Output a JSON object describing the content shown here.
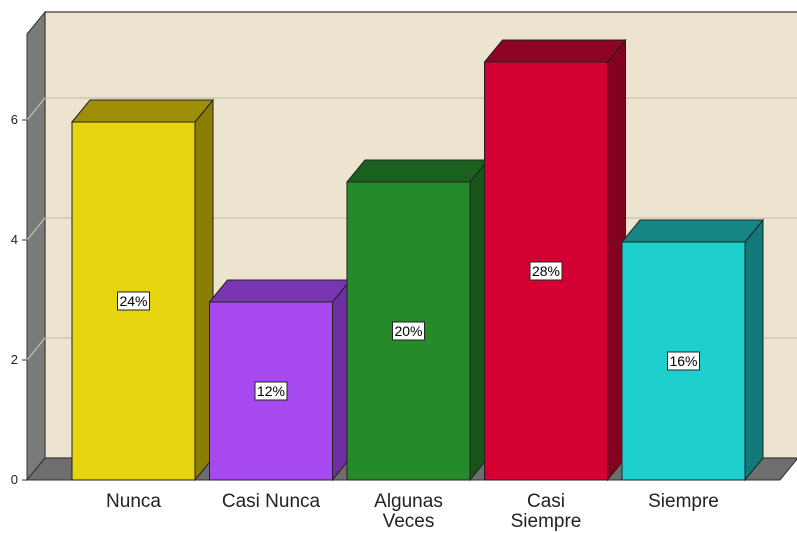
{
  "chart_data": {
    "type": "bar",
    "style": "3d",
    "categories": [
      {
        "lines": [
          "Nunca"
        ]
      },
      {
        "lines": [
          "Casi Nunca"
        ]
      },
      {
        "lines": [
          "Algunas",
          "Veces"
        ]
      },
      {
        "lines": [
          "Casi",
          "Siempre"
        ]
      },
      {
        "lines": [
          "Siempre"
        ]
      }
    ],
    "values": [
      6,
      3,
      5,
      7,
      4
    ],
    "data_labels": [
      "24%",
      "12%",
      "20%",
      "28%",
      "16%"
    ],
    "yticks": [
      "0",
      "2",
      "4",
      "6"
    ],
    "ylim": [
      0,
      7
    ],
    "grid": true,
    "colors": {
      "plot_bg": "#ece4cf",
      "wall_side": "#7a7a7a",
      "floor": "#6e6e6e",
      "gridline": "#c7c0ae",
      "bars": [
        {
          "front": "#e5d40e",
          "top": "#9e8f06",
          "side": "#8a7e06"
        },
        {
          "front": "#a64af0",
          "top": "#7a36b2",
          "side": "#6e2fa2"
        },
        {
          "front": "#258a2a",
          "top": "#1a611e",
          "side": "#175618"
        },
        {
          "front": "#d50032",
          "top": "#8f0424",
          "side": "#820220"
        },
        {
          "front": "#1ecfce",
          "top": "#168684",
          "side": "#127978"
        }
      ]
    }
  }
}
